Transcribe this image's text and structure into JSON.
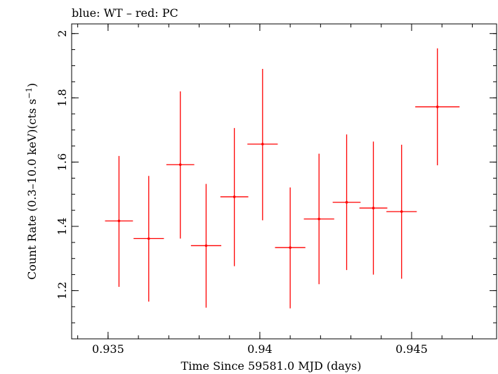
{
  "chart_data": {
    "type": "scatter",
    "title": "blue: WT – red: PC",
    "xlabel": "Time Since 59581.0 MJD (days)",
    "ylabel": "Count Rate (0.3–10.0 keV)(cts s",
    "ylabel_sup": "−1",
    "ylabel_end": ")",
    "xlim": [
      0.9338,
      0.9478
    ],
    "ylim": [
      1.05,
      2.03
    ],
    "x_ticks": [
      0.935,
      0.94,
      0.945
    ],
    "x_tick_labels": [
      "0.935",
      "0.94",
      "0.945"
    ],
    "y_ticks": [
      1.2,
      1.4,
      1.6,
      1.8,
      2.0
    ],
    "y_tick_labels": [
      "1.2",
      "1.4",
      "1.6",
      "1.8",
      "2"
    ],
    "grid": false,
    "series": [
      {
        "name": "PC",
        "color": "#ff0000",
        "points": [
          {
            "x": 0.93536,
            "y": 1.417,
            "xerr": 0.00046,
            "ylo": 1.212,
            "yhi": 1.619
          },
          {
            "x": 0.93634,
            "y": 1.362,
            "xerr": 0.0005,
            "ylo": 1.166,
            "yhi": 1.557
          },
          {
            "x": 0.93738,
            "y": 1.592,
            "xerr": 0.00046,
            "ylo": 1.362,
            "yhi": 1.82
          },
          {
            "x": 0.93823,
            "y": 1.34,
            "xerr": 0.0005,
            "ylo": 1.147,
            "yhi": 1.532
          },
          {
            "x": 0.93916,
            "y": 1.492,
            "xerr": 0.00046,
            "ylo": 1.276,
            "yhi": 1.706
          },
          {
            "x": 0.94009,
            "y": 1.656,
            "xerr": 0.0005,
            "ylo": 1.419,
            "yhi": 1.89
          },
          {
            "x": 0.941,
            "y": 1.334,
            "xerr": 0.0005,
            "ylo": 1.145,
            "yhi": 1.521
          },
          {
            "x": 0.94195,
            "y": 1.423,
            "xerr": 0.0005,
            "ylo": 1.22,
            "yhi": 1.626
          },
          {
            "x": 0.94286,
            "y": 1.475,
            "xerr": 0.00046,
            "ylo": 1.264,
            "yhi": 1.686
          },
          {
            "x": 0.94374,
            "y": 1.457,
            "xerr": 0.00046,
            "ylo": 1.25,
            "yhi": 1.664
          },
          {
            "x": 0.94467,
            "y": 1.446,
            "xerr": 0.0005,
            "ylo": 1.237,
            "yhi": 1.654
          },
          {
            "x": 0.94585,
            "y": 1.772,
            "xerr": 0.00073,
            "ylo": 1.59,
            "yhi": 1.954
          }
        ]
      }
    ]
  }
}
